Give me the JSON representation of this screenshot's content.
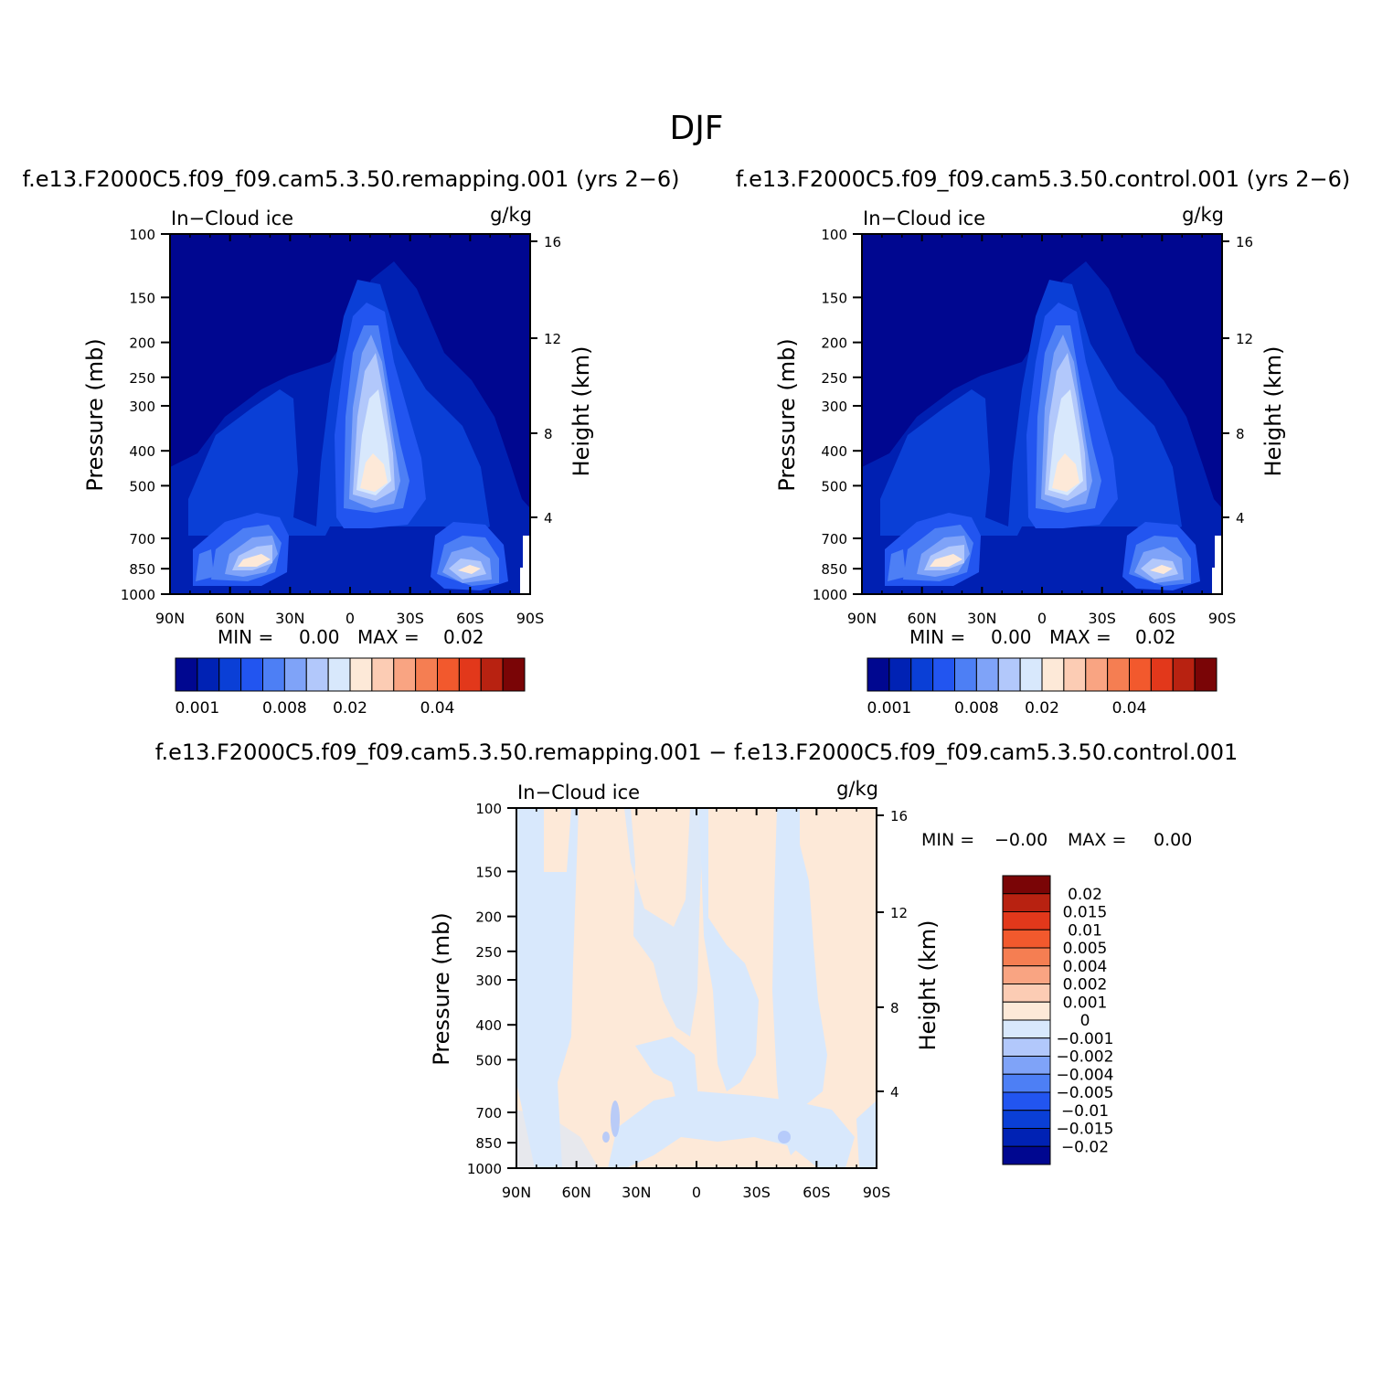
{
  "figure": {
    "title": "DJF"
  },
  "chart_data": [
    {
      "type": "heatmap",
      "id": "remapping",
      "title": "f.e13.F2000C5.f09_f09.cam5.3.50.remapping.001 (yrs 2−6)",
      "left_label": "In−Cloud ice",
      "right_label": "g/kg",
      "xlabel": "",
      "ylabel": "Pressure (mb)",
      "y2label": "Height (km)",
      "x_ticks": [
        "90N",
        "60N",
        "30N",
        "0",
        "30S",
        "60S",
        "90S"
      ],
      "x_range": [
        90,
        -90
      ],
      "y_ticks": [
        "100",
        "150",
        "200",
        "250",
        "300",
        "400",
        "500",
        "700",
        "850",
        "1000"
      ],
      "y_range": [
        100,
        1000
      ],
      "y_scale": "log",
      "y2_ticks": [
        "4",
        "8",
        "12",
        "16"
      ],
      "min_label": "MIN =",
      "min_value": "0.00",
      "max_label": "MAX =",
      "max_value": "0.02",
      "colorbar": {
        "orientation": "horizontal",
        "levels": [
          0.001,
          0.002,
          0.004,
          0.006,
          0.008,
          0.01,
          0.015,
          0.02,
          0.025,
          0.03,
          0.035,
          0.04,
          0.045,
          0.05
        ],
        "labels": [
          "0.001",
          "0.008",
          "0.02",
          "0.04"
        ],
        "colors": [
          "#000790",
          "#0022b4",
          "#0a3fd6",
          "#2255f0",
          "#4d7ff5",
          "#7fa3f8",
          "#b2c8fb",
          "#d8e8fc",
          "#fde9d8",
          "#fcccb4",
          "#f9a482",
          "#f57e52",
          "#f2592d",
          "#e2381b",
          "#b82211",
          "#7a0506"
        ]
      }
    },
    {
      "type": "heatmap",
      "id": "control",
      "title": "f.e13.F2000C5.f09_f09.cam5.3.50.control.001 (yrs 2−6)",
      "left_label": "In−Cloud ice",
      "right_label": "g/kg",
      "xlabel": "",
      "ylabel": "Pressure (mb)",
      "y2label": "Height (km)",
      "x_ticks": [
        "90N",
        "60N",
        "30N",
        "0",
        "30S",
        "60S",
        "90S"
      ],
      "x_range": [
        90,
        -90
      ],
      "y_ticks": [
        "100",
        "150",
        "200",
        "250",
        "300",
        "400",
        "500",
        "700",
        "850",
        "1000"
      ],
      "y_range": [
        100,
        1000
      ],
      "y_scale": "log",
      "y2_ticks": [
        "4",
        "8",
        "12",
        "16"
      ],
      "min_label": "MIN =",
      "min_value": "0.00",
      "max_label": "MAX =",
      "max_value": "0.02",
      "colorbar": {
        "orientation": "horizontal",
        "levels": [
          0.001,
          0.002,
          0.004,
          0.006,
          0.008,
          0.01,
          0.015,
          0.02,
          0.025,
          0.03,
          0.035,
          0.04,
          0.045,
          0.05
        ],
        "labels": [
          "0.001",
          "0.008",
          "0.02",
          "0.04"
        ],
        "colors": [
          "#000790",
          "#0022b4",
          "#0a3fd6",
          "#2255f0",
          "#4d7ff5",
          "#7fa3f8",
          "#b2c8fb",
          "#d8e8fc",
          "#fde9d8",
          "#fcccb4",
          "#f9a482",
          "#f57e52",
          "#f2592d",
          "#e2381b",
          "#b82211",
          "#7a0506"
        ]
      }
    },
    {
      "type": "heatmap",
      "id": "difference",
      "title": "f.e13.F2000C5.f09_f09.cam5.3.50.remapping.001 − f.e13.F2000C5.f09_f09.cam5.3.50.control.001",
      "left_label": "In−Cloud ice",
      "right_label": "g/kg",
      "xlabel": "",
      "ylabel": "Pressure (mb)",
      "y2label": "Height (km)",
      "x_ticks": [
        "90N",
        "60N",
        "30N",
        "0",
        "30S",
        "60S",
        "90S"
      ],
      "x_range": [
        90,
        -90
      ],
      "y_ticks": [
        "100",
        "150",
        "200",
        "250",
        "300",
        "400",
        "500",
        "700",
        "850",
        "1000"
      ],
      "y_range": [
        100,
        1000
      ],
      "y_scale": "log",
      "y2_ticks": [
        "4",
        "8",
        "12",
        "16"
      ],
      "min_label": "MIN =",
      "min_value": "−0.00",
      "max_label": "MAX =",
      "max_value": "0.00",
      "colorbar": {
        "orientation": "vertical",
        "labels": [
          "0.02",
          "0.015",
          "0.01",
          "0.005",
          "0.004",
          "0.002",
          "0.001",
          "0",
          "−0.001",
          "−0.002",
          "−0.004",
          "−0.005",
          "−0.01",
          "−0.015",
          "−0.02"
        ],
        "colors": [
          "#7a0506",
          "#b82211",
          "#e2381b",
          "#f2592d",
          "#f57e52",
          "#f9a482",
          "#fcccb4",
          "#fde9d8",
          "#d8e8fc",
          "#b2c8fb",
          "#7fa3f8",
          "#4d7ff5",
          "#2255f0",
          "#0a3fd6",
          "#0022b4",
          "#000790"
        ]
      }
    }
  ]
}
